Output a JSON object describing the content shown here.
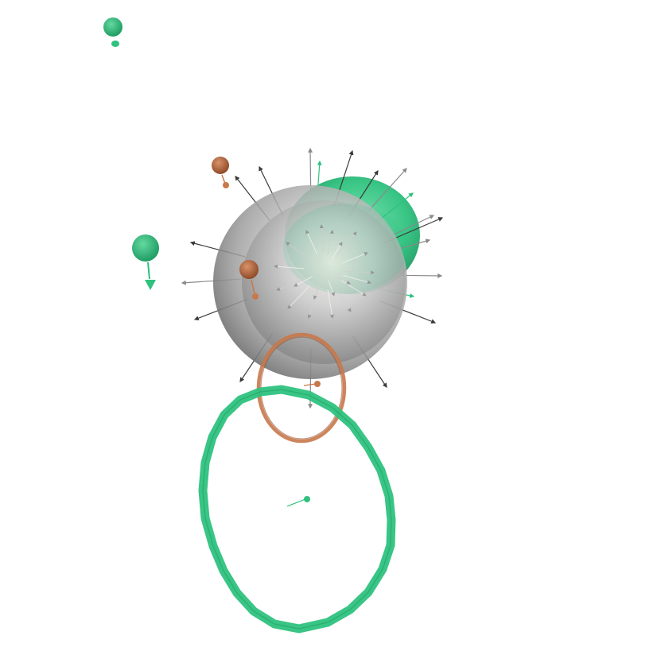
{
  "scene": {
    "background_color": "#ffffff",
    "colors": {
      "green": "#2ec27e",
      "green_dark": "#1f9d63",
      "orange": "#c8784b",
      "orange_dark": "#9a5530",
      "gray_sphere": "#9a9a9a",
      "arrow_dark": "#3a3a3a",
      "arrow_light": "#8a8a8a",
      "arrow_green": "#2ec27e"
    },
    "objects": [
      {
        "name": "large-gray-sphere",
        "shape": "sphere",
        "color": "gray"
      },
      {
        "name": "inner-gray-sphere",
        "shape": "sphere",
        "color": "gray"
      },
      {
        "name": "green-sphere",
        "shape": "sphere",
        "color": "green"
      },
      {
        "name": "green-ring",
        "shape": "torus",
        "color": "green"
      },
      {
        "name": "orange-ring",
        "shape": "torus",
        "color": "orange"
      },
      {
        "name": "small-green-ball-top-left",
        "shape": "sphere",
        "color": "green"
      },
      {
        "name": "small-green-ball-left",
        "shape": "sphere",
        "color": "green"
      },
      {
        "name": "small-orange-ball-upper",
        "shape": "sphere",
        "color": "orange"
      },
      {
        "name": "small-orange-ball-mid",
        "shape": "sphere",
        "color": "orange"
      },
      {
        "name": "normal-vector-arrows",
        "shape": "arrows",
        "color": "gray"
      }
    ]
  }
}
